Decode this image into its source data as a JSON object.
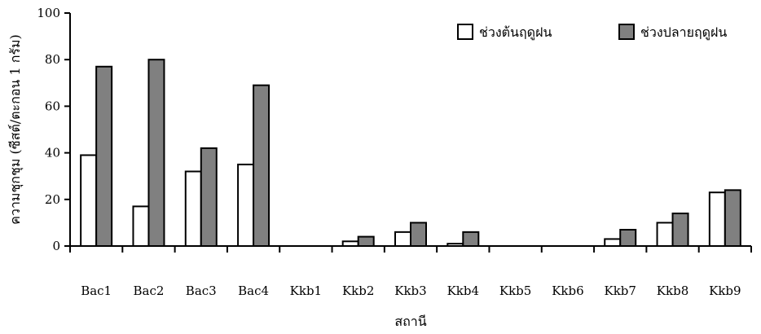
{
  "chart_data": {
    "type": "bar",
    "title": "",
    "xlabel": "สถานี",
    "ylabel": "ความชุกชุม (ซีสต์/ตะกอน 1 กรัม)",
    "ylim": [
      0,
      100
    ],
    "yticks": [
      0,
      20,
      40,
      60,
      80,
      100
    ],
    "grid": false,
    "legend_position": "top-right",
    "categories": [
      "Bac1",
      "Bac2",
      "Bac3",
      "Bac4",
      "Kkb1",
      "Kkb2",
      "Kkb3",
      "Kkb4",
      "Kkb5",
      "Kkb6",
      "Kkb7",
      "Kkb8",
      "Kkb9"
    ],
    "series": [
      {
        "name": "ช่วงต้นฤดูฝน",
        "color": "#ffffff",
        "values": [
          39,
          17,
          32,
          35,
          0,
          2,
          6,
          1,
          0,
          0,
          3,
          10,
          23
        ]
      },
      {
        "name": "ช่วงปลายฤดูฝน",
        "color": "#808080",
        "values": [
          77,
          80,
          42,
          69,
          0,
          4,
          10,
          6,
          0,
          0,
          7,
          14,
          24
        ]
      }
    ]
  }
}
